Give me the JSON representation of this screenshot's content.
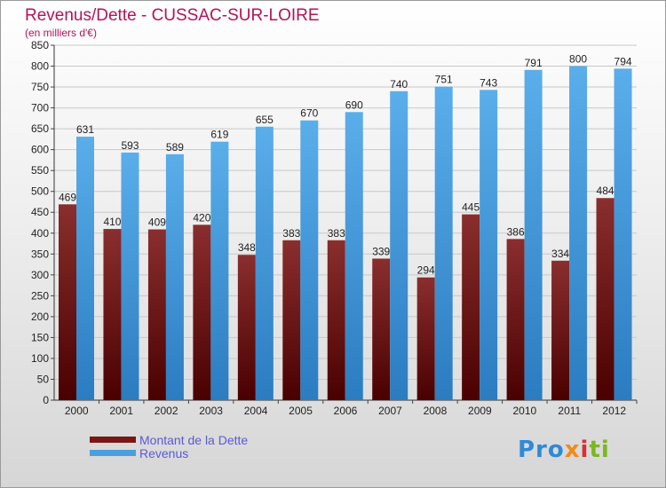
{
  "chart_data": {
    "type": "bar",
    "title": "Revenus/Dette - CUSSAC-SUR-LOIRE",
    "subtitle": "(en milliers d'€)",
    "categories": [
      "2000",
      "2001",
      "2002",
      "2003",
      "2004",
      "2005",
      "2006",
      "2007",
      "2008",
      "2009",
      "2010",
      "2011",
      "2012"
    ],
    "series": [
      {
        "name": "Montant de la Dette",
        "color": "#7a1616",
        "values": [
          469,
          410,
          409,
          420,
          348,
          383,
          383,
          339,
          294,
          445,
          386,
          334,
          484
        ]
      },
      {
        "name": "Revenus",
        "color": "#4a9fe0",
        "values": [
          631,
          593,
          589,
          619,
          655,
          670,
          690,
          740,
          751,
          743,
          791,
          800,
          794
        ]
      }
    ],
    "ylim": [
      0,
      850
    ],
    "yticks": [
      0,
      50,
      100,
      150,
      200,
      250,
      300,
      350,
      400,
      450,
      500,
      550,
      600,
      650,
      700,
      750,
      800,
      850
    ],
    "grid": true,
    "legend": "bottom-left",
    "xlabel": "",
    "ylabel": ""
  },
  "legend": {
    "items": [
      {
        "label": "Montant de la Dette",
        "color": "#7a1616"
      },
      {
        "label": "Revenus",
        "color": "#4a9fe0"
      }
    ]
  },
  "logo": {
    "text_1": "Pro",
    "text_2": "x",
    "text_3": "i",
    "text_4": "ti"
  }
}
